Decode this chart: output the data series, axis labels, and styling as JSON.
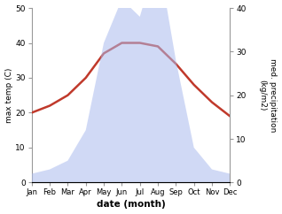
{
  "months": [
    "Jan",
    "Feb",
    "Mar",
    "Apr",
    "May",
    "Jun",
    "Jul",
    "Aug",
    "Sep",
    "Oct",
    "Nov",
    "Dec"
  ],
  "temperature": [
    20,
    22,
    25,
    30,
    37,
    40,
    40,
    39,
    34,
    28,
    23,
    19
  ],
  "precipitation": [
    2,
    3,
    5,
    12,
    32,
    42,
    38,
    52,
    28,
    8,
    3,
    2
  ],
  "temp_ylim": [
    0,
    50
  ],
  "precip_ylim": [
    0,
    40
  ],
  "temp_yticks": [
    0,
    10,
    20,
    30,
    40,
    50
  ],
  "precip_yticks": [
    0,
    10,
    20,
    30,
    40
  ],
  "ylabel_left": "max temp (C)",
  "ylabel_right": "med. precipitation\n(kg/m2)",
  "xlabel": "date (month)",
  "fill_color": "#aabbee",
  "fill_alpha": 0.55,
  "line_color": "#c0392b",
  "line_width": 1.8,
  "bg_color": "#ffffff"
}
